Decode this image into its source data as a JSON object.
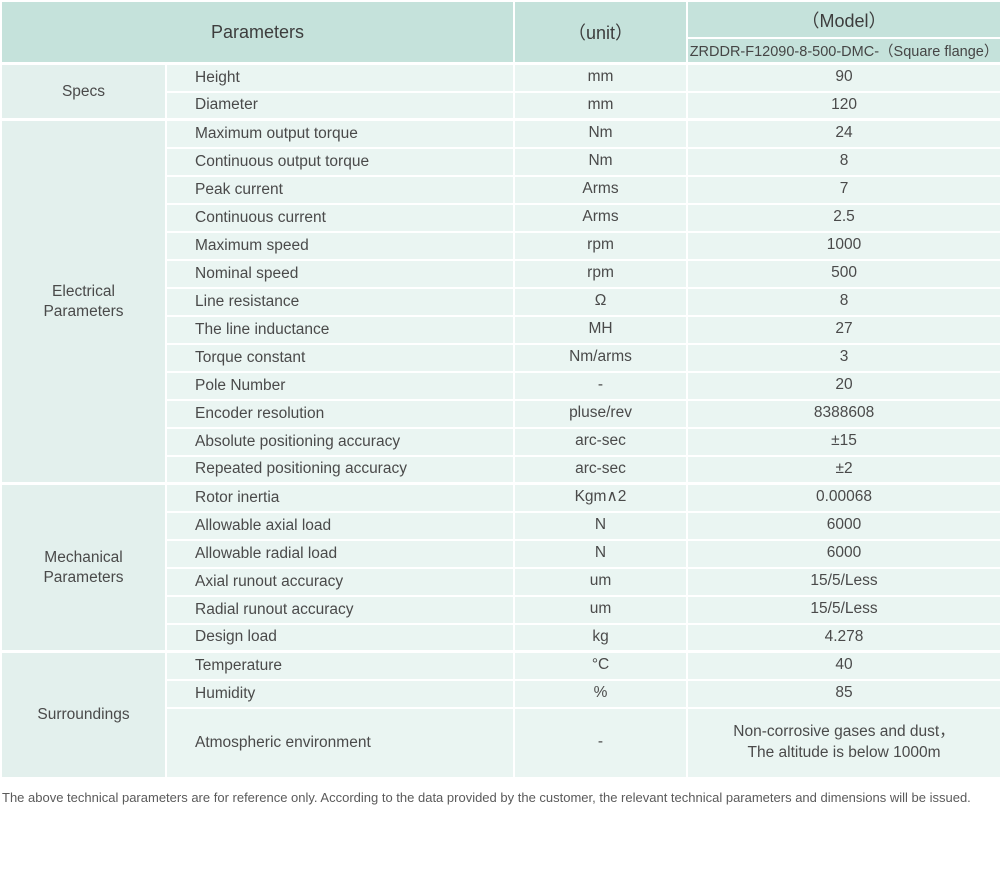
{
  "table": {
    "header": {
      "parameters": "Parameters",
      "unit": "（unit）",
      "model": "（Model）",
      "model_variant": "ZRDDR-F12090-8-500-DMC-（Square flange）"
    },
    "sections": [
      {
        "label": "Specs",
        "rows": [
          {
            "param": "Height",
            "unit": "mm",
            "value": "90"
          },
          {
            "param": "Diameter",
            "unit": "mm",
            "value": "120"
          }
        ]
      },
      {
        "label": "Electrical\nParameters",
        "rows": [
          {
            "param": "Maximum output torque",
            "unit": "Nm",
            "value": "24"
          },
          {
            "param": "Continuous output torque",
            "unit": "Nm",
            "value": "8"
          },
          {
            "param": "Peak current",
            "unit": "Arms",
            "value": "7"
          },
          {
            "param": "Continuous current",
            "unit": "Arms",
            "value": "2.5"
          },
          {
            "param": "Maximum speed",
            "unit": "rpm",
            "value": "1000"
          },
          {
            "param": "Nominal speed",
            "unit": "rpm",
            "value": "500"
          },
          {
            "param": "Line resistance",
            "unit": "Ω",
            "value": "8"
          },
          {
            "param": "The line inductance",
            "unit": "MH",
            "value": "27"
          },
          {
            "param": "Torque constant",
            "unit": "Nm/arms",
            "value": "3"
          },
          {
            "param": "Pole Number",
            "unit": "-",
            "value": "20"
          },
          {
            "param": "Encoder resolution",
            "unit": "pluse/rev",
            "value": "8388608"
          },
          {
            "param": "Absolute positioning accuracy",
            "unit": "arc-sec",
            "value": "±15"
          },
          {
            "param": "Repeated positioning accuracy",
            "unit": "arc-sec",
            "value": "±2"
          }
        ]
      },
      {
        "label": "Mechanical\nParameters",
        "rows": [
          {
            "param": "Rotor inertia",
            "unit": "Kgm∧2",
            "value": "0.00068"
          },
          {
            "param": "Allowable axial load",
            "unit": "N",
            "value": "6000"
          },
          {
            "param": "Allowable radial load",
            "unit": "N",
            "value": "6000"
          },
          {
            "param": "Axial runout accuracy",
            "unit": "um",
            "value": "15/5/Less"
          },
          {
            "param": "Radial runout accuracy",
            "unit": "um",
            "value": "15/5/Less"
          },
          {
            "param": "Design load",
            "unit": "kg",
            "value": "4.278"
          }
        ]
      },
      {
        "label": "Surroundings",
        "rows": [
          {
            "param": "Temperature",
            "unit": "°C",
            "value": "40"
          },
          {
            "param": "Humidity",
            "unit": "%",
            "value": "85"
          },
          {
            "param": "Atmospheric environment",
            "unit": "-",
            "value": "Non-corrosive gases and dust，\nThe altitude is below 1000m",
            "tall": true
          }
        ]
      }
    ]
  },
  "footer": {
    "note": "The above technical parameters are for reference only. According to the data provided by the customer, the relevant technical parameters and dimensions will be issued."
  },
  "colors": {
    "header_bg": "#c5e2db",
    "row_bg": "#eaf5f2",
    "category_bg": "#e3f0ed",
    "border": "#ffffff"
  }
}
